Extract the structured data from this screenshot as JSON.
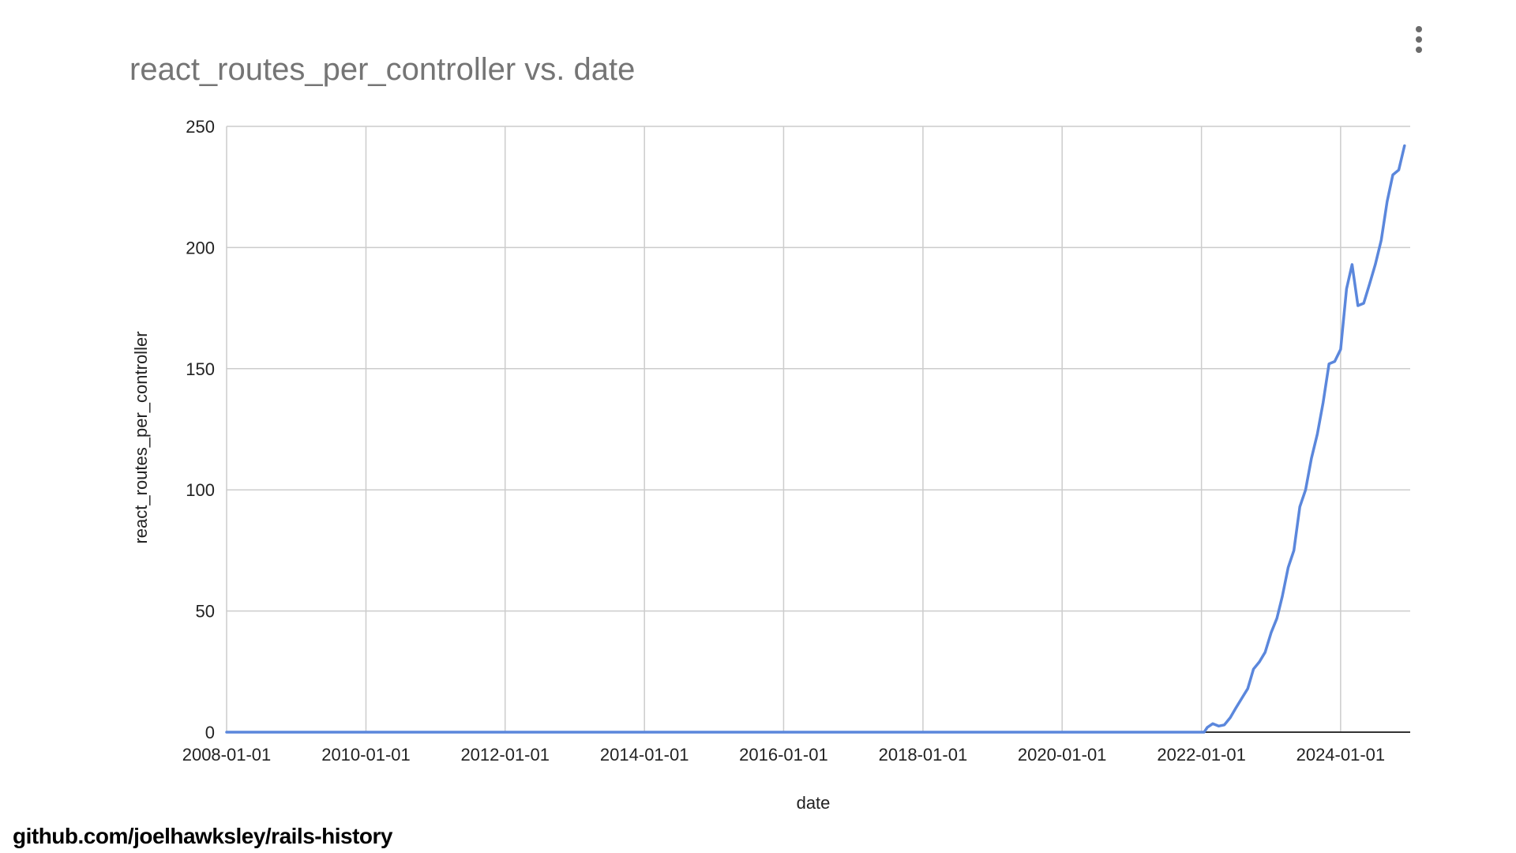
{
  "source_credit": "github.com/joelhawksley/rails-history",
  "menu": {
    "icon": "kebab-menu-icon"
  },
  "colors": {
    "series": "#5b87dc",
    "grid": "#cccccc",
    "baseline": "#333333",
    "title": "#757575",
    "text": "#222222"
  },
  "chart_data": {
    "type": "line",
    "title": "react_routes_per_controller vs. date",
    "xlabel": "date",
    "ylabel": "react_routes_per_controller",
    "xlim": [
      "2008-01-01",
      "2024-12-31"
    ],
    "ylim": [
      0,
      250
    ],
    "x_ticks": [
      "2008-01-01",
      "2010-01-01",
      "2012-01-01",
      "2014-01-01",
      "2016-01-01",
      "2018-01-01",
      "2020-01-01",
      "2022-01-01",
      "2024-01-01"
    ],
    "y_ticks": [
      0,
      50,
      100,
      150,
      200,
      250
    ],
    "grid": true,
    "legend": "none",
    "series": [
      {
        "points": [
          [
            "2008-01-01",
            0
          ],
          [
            "2021-12-01",
            0
          ],
          [
            "2022-01-15",
            0
          ],
          [
            "2022-02-01",
            2
          ],
          [
            "2022-03-01",
            3.5
          ],
          [
            "2022-04-01",
            2.5
          ],
          [
            "2022-05-01",
            3
          ],
          [
            "2022-06-01",
            6
          ],
          [
            "2022-07-01",
            10
          ],
          [
            "2022-08-01",
            14
          ],
          [
            "2022-09-01",
            18
          ],
          [
            "2022-10-01",
            26
          ],
          [
            "2022-11-01",
            29
          ],
          [
            "2022-12-01",
            33
          ],
          [
            "2023-01-01",
            41
          ],
          [
            "2023-02-01",
            47
          ],
          [
            "2023-03-01",
            56
          ],
          [
            "2023-04-01",
            68
          ],
          [
            "2023-05-01",
            75
          ],
          [
            "2023-06-01",
            93
          ],
          [
            "2023-07-01",
            100
          ],
          [
            "2023-08-01",
            113
          ],
          [
            "2023-09-01",
            123
          ],
          [
            "2023-10-01",
            136
          ],
          [
            "2023-11-01",
            152
          ],
          [
            "2023-12-01",
            153
          ],
          [
            "2024-01-01",
            158
          ],
          [
            "2024-02-01",
            183
          ],
          [
            "2024-03-01",
            193
          ],
          [
            "2024-04-01",
            176
          ],
          [
            "2024-05-01",
            177
          ],
          [
            "2024-06-01",
            185
          ],
          [
            "2024-07-01",
            193
          ],
          [
            "2024-08-01",
            203
          ],
          [
            "2024-09-01",
            219
          ],
          [
            "2024-10-01",
            230
          ],
          [
            "2024-11-01",
            232
          ],
          [
            "2024-12-01",
            242
          ]
        ]
      }
    ]
  }
}
